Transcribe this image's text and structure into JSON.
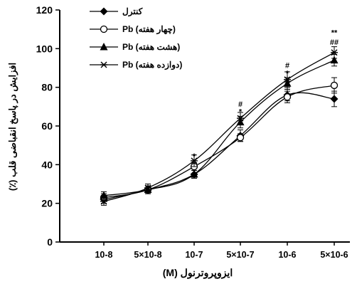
{
  "chart_data": {
    "type": "line",
    "xlabel": "ایزوپروترنول (M)",
    "ylabel": "افزایش در پاسخ انقباضی قلب (٪)",
    "categories": [
      "10-8",
      "5×10-8",
      "10-7",
      "5×10-7",
      "10-6",
      "5×10-6"
    ],
    "ylim": [
      0,
      120
    ],
    "yticks": [
      0,
      20,
      40,
      60,
      80,
      100,
      120
    ],
    "grid": false,
    "legend_position": "top-center",
    "series": [
      {
        "name": "کنترل",
        "marker": "diamond",
        "values": [
          22,
          27,
          35,
          55,
          76,
          74
        ],
        "errors": [
          2,
          2,
          2,
          3,
          3,
          4
        ]
      },
      {
        "name": "Pb (چهار هفته)",
        "marker": "circle-open",
        "values": [
          23,
          27,
          39,
          54,
          75,
          81
        ],
        "errors": [
          2,
          2,
          2,
          2,
          3,
          4
        ]
      },
      {
        "name": "Pb (هشت هفته)",
        "marker": "triangle",
        "values": [
          24,
          27,
          35,
          62,
          82,
          94
        ],
        "errors": [
          2,
          2,
          2,
          3,
          3,
          3
        ]
      },
      {
        "name": "Pb (دوازده هفته)",
        "marker": "star",
        "values": [
          21,
          28,
          42,
          64,
          84,
          98
        ],
        "errors": [
          2,
          2,
          3,
          3,
          4,
          3
        ]
      }
    ],
    "annotations": [
      {
        "category": "10-7",
        "y": 43,
        "text": "*"
      },
      {
        "category": "5×10-7",
        "y": 66,
        "text": "*"
      },
      {
        "category": "5×10-7",
        "y": 70,
        "text": "#"
      },
      {
        "category": "10-6",
        "y": 86,
        "text": "*"
      },
      {
        "category": "10-6",
        "y": 90,
        "text": "#"
      },
      {
        "category": "5×10-6",
        "y": 102,
        "text": "##"
      },
      {
        "category": "5×10-6",
        "y": 107,
        "text": "**"
      }
    ]
  },
  "colors": {
    "line": "#000000",
    "background": "#ffffff"
  }
}
